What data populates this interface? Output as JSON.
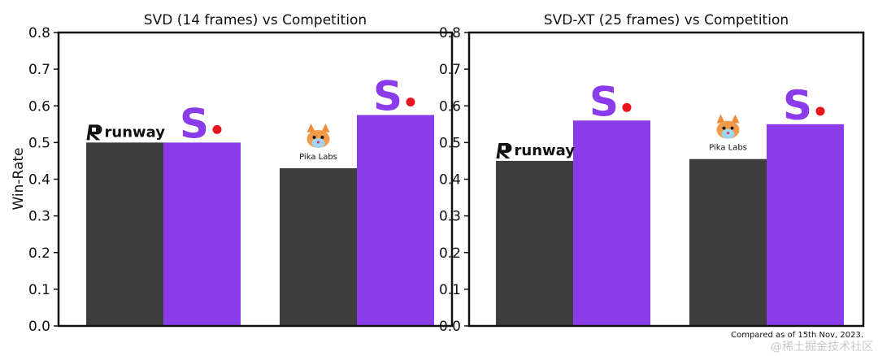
{
  "chart_data": [
    {
      "type": "bar",
      "title": "SVD (14 frames) vs Competition",
      "ylabel": "Win-Rate",
      "ylim": [
        0,
        0.8
      ],
      "yticks": [
        "0.0",
        "0.1",
        "0.2",
        "0.3",
        "0.4",
        "0.5",
        "0.6",
        "0.7",
        "0.8"
      ],
      "groups": [
        {
          "competitor": "runway",
          "competitor_value": 0.5,
          "stability_value": 0.5
        },
        {
          "competitor": "Pika Labs",
          "competitor_value": 0.43,
          "stability_value": 0.575
        }
      ]
    },
    {
      "type": "bar",
      "title": "SVD-XT (25 frames) vs Competition",
      "ylabel": "",
      "ylim": [
        0,
        0.8
      ],
      "yticks": [
        "0.0",
        "0.1",
        "0.2",
        "0.3",
        "0.4",
        "0.5",
        "0.6",
        "0.7",
        "0.8"
      ],
      "groups": [
        {
          "competitor": "runway",
          "competitor_value": 0.45,
          "stability_value": 0.56
        },
        {
          "competitor": "Pika Labs",
          "competitor_value": 0.455,
          "stability_value": 0.55
        }
      ]
    }
  ],
  "colors": {
    "competitor_bar": "#3d3d3d",
    "stability_bar": "#8b3cea",
    "stability_dot": "#e8141e"
  },
  "logos": {
    "stability_letter": "S",
    "runway_label": "runway",
    "pika_label": "Pika Labs",
    "pika_icon": "fox-icon",
    "runway_icon": "runway-r-icon"
  },
  "footnote": "Compared as of 15th Nov, 2023.",
  "watermark": "@稀土掘金技术社区"
}
